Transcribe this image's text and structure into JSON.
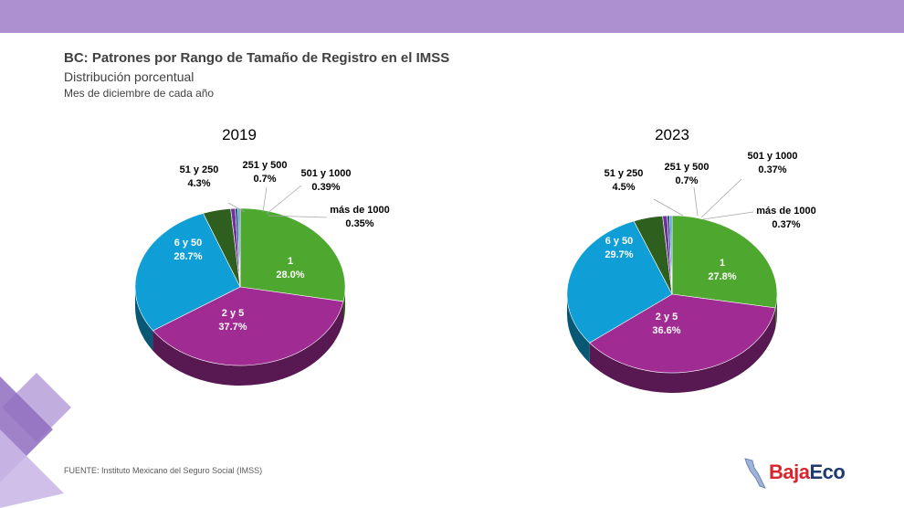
{
  "header": {
    "title": "BC: Patrones por Rango de Tamaño de Registro en el IMSS",
    "subtitle": "Distribución porcentual",
    "subtitle2": "Mes de diciembre de cada año"
  },
  "footer": {
    "source": "FUENTE: Instituto Mexicano del Seguro Social (IMSS)",
    "logo_part1": "Baja",
    "logo_part2": "Eco"
  },
  "colors": {
    "band": "#ac90cf",
    "s1": "#4ea72e",
    "s2_5": "#a02b93",
    "s6_50": "#0f9ed5",
    "s51_250": "#2f5f1f",
    "s251_500": "#7030a0",
    "s501_1000": "#1f4e79",
    "s1000plus": "#5b9bd5"
  },
  "chart_data": [
    {
      "type": "pie",
      "title": "2019",
      "slices": [
        {
          "label": "1",
          "value": 28.0,
          "display": "28.0%"
        },
        {
          "label": "2 y 5",
          "value": 37.7,
          "display": "37.7%"
        },
        {
          "label": "6 y 50",
          "value": 28.7,
          "display": "28.7%"
        },
        {
          "label": "51 y 250",
          "value": 4.3,
          "display": "4.3%"
        },
        {
          "label": "251 y 500",
          "value": 0.7,
          "display": "0.7%"
        },
        {
          "label": "501 y 1000",
          "value": 0.39,
          "display": "0.39%"
        },
        {
          "label": "más de 1000",
          "value": 0.35,
          "display": "0.35%"
        }
      ]
    },
    {
      "type": "pie",
      "title": "2023",
      "slices": [
        {
          "label": "1",
          "value": 27.8,
          "display": "27.8%"
        },
        {
          "label": "2 y 5",
          "value": 36.6,
          "display": "36.6%"
        },
        {
          "label": "6 y 50",
          "value": 29.7,
          "display": "29.7%"
        },
        {
          "label": "51 y 250",
          "value": 4.5,
          "display": "4.5%"
        },
        {
          "label": "251 y 500",
          "value": 0.7,
          "display": "0.7%"
        },
        {
          "label": "501 y 1000",
          "value": 0.37,
          "display": "0.37%"
        },
        {
          "label": "más de 1000",
          "value": 0.37,
          "display": "0.37%"
        }
      ]
    }
  ]
}
